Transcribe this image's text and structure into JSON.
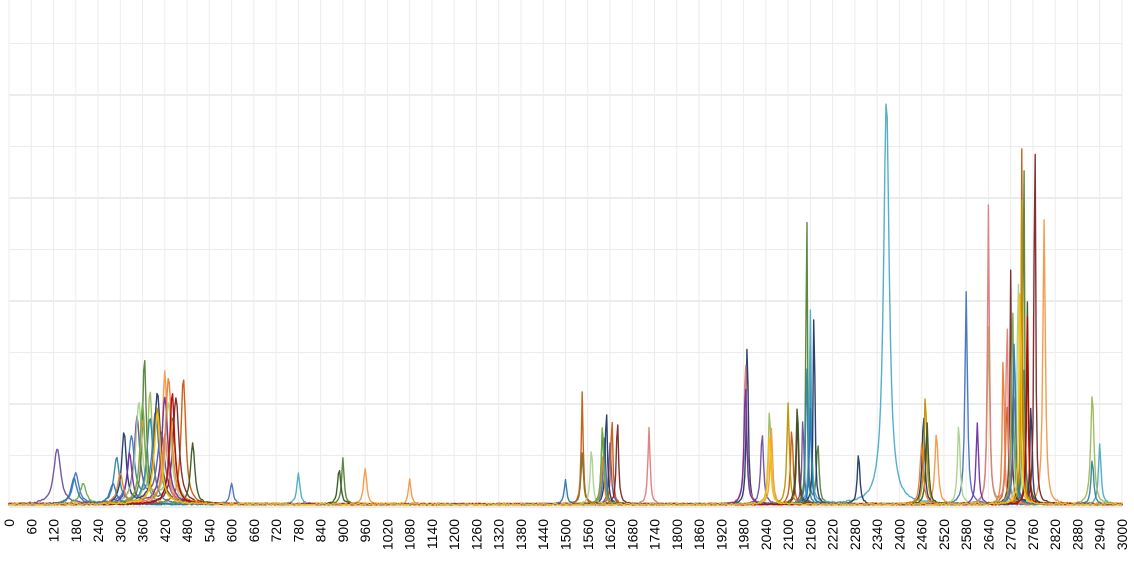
{
  "chart_data": {
    "type": "line",
    "title": "",
    "xlabel": "",
    "ylabel": "",
    "grid": true,
    "legend": "none",
    "xlim": [
      0,
      3000
    ],
    "ylim": [
      0,
      1
    ],
    "x_ticks": [
      "0",
      "60",
      "120",
      "180",
      "240",
      "300",
      "360",
      "420",
      "480",
      "540",
      "600",
      "660",
      "720",
      "780",
      "840",
      "900",
      "960",
      "1020",
      "1080",
      "1140",
      "1200",
      "1260",
      "1320",
      "1380",
      "1440",
      "1500",
      "1560",
      "1620",
      "1680",
      "1740",
      "1800",
      "1860",
      "1920",
      "1980",
      "2040",
      "2100",
      "2160",
      "2220",
      "2280",
      "2340",
      "2400",
      "2460",
      "2520",
      "2580",
      "2640",
      "2700",
      "2760",
      "2820",
      "2880",
      "2940",
      "3000"
    ],
    "note_units": "y values are relative intensities (axis unlabeled), peaks listed as [x, height, width]",
    "series": [
      {
        "color": "#6e4fa0",
        "peaks": [
          [
            130,
            0.11,
            22
          ],
          [
            345,
            0.17,
            18
          ],
          [
            410,
            0.14,
            25
          ],
          [
            1620,
            0.12,
            8
          ],
          [
            2030,
            0.14,
            9
          ],
          [
            2140,
            0.18,
            6
          ],
          [
            2710,
            0.22,
            10
          ]
        ]
      },
      {
        "color": "#4472c4",
        "peaks": [
          [
            180,
            0.06,
            20
          ],
          [
            330,
            0.13,
            20
          ],
          [
            395,
            0.18,
            22
          ],
          [
            600,
            0.04,
            10
          ],
          [
            1605,
            0.13,
            8
          ],
          [
            2160,
            0.31,
            5
          ],
          [
            2580,
            0.42,
            8
          ],
          [
            2735,
            0.28,
            8
          ]
        ]
      },
      {
        "color": "#548235",
        "peaks": [
          [
            365,
            0.29,
            12
          ],
          [
            440,
            0.17,
            18
          ],
          [
            900,
            0.09,
            8
          ],
          [
            1545,
            0.1,
            8
          ],
          [
            2150,
            0.69,
            4
          ],
          [
            2180,
            0.12,
            8
          ],
          [
            2735,
            0.82,
            4
          ]
        ]
      },
      {
        "color": "#c55a11",
        "peaks": [
          [
            470,
            0.25,
            15
          ],
          [
            1545,
            0.22,
            6
          ],
          [
            1625,
            0.18,
            6
          ],
          [
            2110,
            0.15,
            8
          ],
          [
            2730,
            0.7,
            4
          ],
          [
            2690,
            0.2,
            8
          ]
        ]
      },
      {
        "color": "#4bacc6",
        "peaks": [
          [
            780,
            0.06,
            10
          ],
          [
            2365,
            0.8,
            18
          ],
          [
            2940,
            0.12,
            8
          ],
          [
            2160,
            0.38,
            6
          ]
        ]
      },
      {
        "color": "#9bbb59",
        "peaks": [
          [
            380,
            0.22,
            15
          ],
          [
            440,
            0.16,
            20
          ],
          [
            2050,
            0.19,
            8
          ],
          [
            2640,
            0.35,
            8
          ],
          [
            2920,
            0.22,
            10
          ]
        ]
      },
      {
        "color": "#f79646",
        "peaks": [
          [
            360,
            0.16,
            18
          ],
          [
            420,
            0.26,
            15
          ],
          [
            960,
            0.07,
            10
          ],
          [
            1080,
            0.05,
            8
          ],
          [
            2055,
            0.15,
            8
          ],
          [
            2790,
            0.56,
            8
          ],
          [
            2500,
            0.14,
            10
          ]
        ]
      },
      {
        "color": "#1f3864",
        "peaks": [
          [
            310,
            0.14,
            15
          ],
          [
            400,
            0.22,
            20
          ],
          [
            1610,
            0.19,
            7
          ],
          [
            1990,
            0.34,
            6
          ],
          [
            2170,
            0.42,
            5
          ],
          [
            2290,
            0.1,
            8
          ],
          [
            2465,
            0.18,
            8
          ],
          [
            2755,
            0.21,
            6
          ]
        ]
      },
      {
        "color": "#7b2626",
        "peaks": [
          [
            450,
            0.21,
            20
          ],
          [
            1640,
            0.17,
            7
          ],
          [
            2125,
            0.18,
            6
          ],
          [
            2700,
            0.46,
            5
          ],
          [
            2765,
            0.8,
            5
          ]
        ]
      },
      {
        "color": "#e07b7b",
        "peaks": [
          [
            420,
            0.14,
            18
          ],
          [
            1725,
            0.15,
            7
          ],
          [
            1985,
            0.29,
            8
          ],
          [
            2640,
            0.59,
            6
          ],
          [
            2690,
            0.38,
            6
          ]
        ]
      },
      {
        "color": "#a9d18e",
        "peaks": [
          [
            350,
            0.2,
            20
          ],
          [
            430,
            0.2,
            18
          ],
          [
            1570,
            0.11,
            8
          ],
          [
            2560,
            0.16,
            8
          ],
          [
            2720,
            0.48,
            6
          ]
        ]
      },
      {
        "color": "#bf9000",
        "peaks": [
          [
            400,
            0.19,
            20
          ],
          [
            2100,
            0.2,
            8
          ],
          [
            2470,
            0.22,
            8
          ],
          [
            2730,
            0.6,
            5
          ]
        ]
      },
      {
        "color": "#375623",
        "peaks": [
          [
            495,
            0.12,
            14
          ],
          [
            890,
            0.07,
            10
          ],
          [
            1600,
            0.15,
            8
          ],
          [
            2125,
            0.2,
            8
          ],
          [
            2475,
            0.16,
            8
          ],
          [
            2745,
            0.4,
            6
          ]
        ]
      },
      {
        "color": "#7030a0",
        "peaks": [
          [
            325,
            0.1,
            16
          ],
          [
            420,
            0.21,
            20
          ],
          [
            1985,
            0.24,
            8
          ],
          [
            2610,
            0.16,
            8
          ]
        ]
      },
      {
        "color": "#31859c",
        "peaks": [
          [
            290,
            0.09,
            18
          ],
          [
            380,
            0.17,
            20
          ],
          [
            2150,
            0.31,
            5
          ],
          [
            2920,
            0.09,
            8
          ]
        ]
      },
      {
        "color": "#ed7d31",
        "peaks": [
          [
            300,
            0.06,
            18
          ],
          [
            430,
            0.25,
            20
          ],
          [
            1600,
            0.1,
            8
          ],
          [
            2460,
            0.12,
            10
          ],
          [
            2680,
            0.31,
            6
          ]
        ]
      },
      {
        "color": "#70ad47",
        "peaks": [
          [
            200,
            0.04,
            20
          ],
          [
            360,
            0.2,
            16
          ],
          [
            1600,
            0.16,
            8
          ],
          [
            2705,
            0.42,
            6
          ]
        ]
      },
      {
        "color": "#2e75b6",
        "peaks": [
          [
            175,
            0.05,
            20
          ],
          [
            280,
            0.04,
            20
          ],
          [
            1500,
            0.05,
            8
          ],
          [
            2160,
            0.19,
            6
          ],
          [
            2710,
            0.35,
            6
          ]
        ]
      },
      {
        "color": "#c00000",
        "peaks": [
          [
            440,
            0.22,
            16
          ],
          [
            2745,
            0.37,
            5
          ]
        ]
      },
      {
        "color": "#ffc000",
        "peaks": [
          [
            400,
            0.18,
            20
          ],
          [
            2050,
            0.14,
            8
          ],
          [
            2725,
            0.46,
            6
          ]
        ]
      }
    ]
  }
}
